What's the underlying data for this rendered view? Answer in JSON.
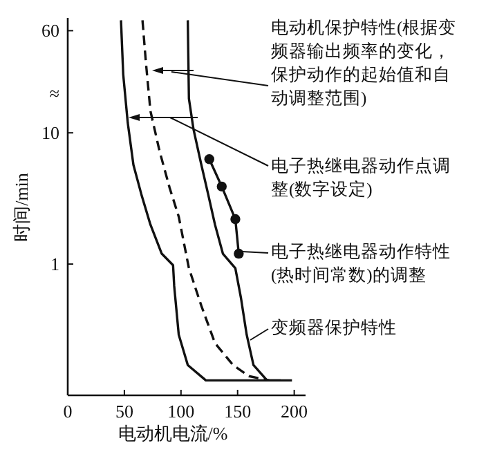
{
  "chart_data": {
    "type": "line",
    "xlabel": "电动机电流/%",
    "ylabel": "时间/min",
    "log": "y",
    "xlim": [
      0,
      210
    ],
    "ylim": [
      0.1,
      75
    ],
    "xticks": [
      0,
      50,
      100,
      150,
      200
    ],
    "yticks": [
      1,
      10,
      {
        "value": 20,
        "label": "≈"
      },
      60
    ],
    "series": [
      {
        "color": "#111111",
        "line_style": "solid",
        "marker": "none",
        "x": [
          47,
          49,
          53,
          58,
          65,
          73,
          83,
          93,
          94,
          98,
          106,
          122,
          152,
          198
        ],
        "values": [
          72,
          27.8,
          11.9,
          5.7,
          3.4,
          2.0,
          1.2,
          0.98,
          0.68,
          0.29,
          0.17,
          0.13,
          0.13,
          0.13
        ]
      },
      {
        "color": "#111111",
        "line_style": "dashed",
        "marker": "none",
        "x": [
          66,
          69,
          73,
          81,
          90,
          98,
          107,
          118,
          130,
          146,
          160,
          178
        ],
        "values": [
          72,
          34.5,
          14.7,
          7.3,
          3.8,
          2.3,
          0.93,
          0.48,
          0.25,
          0.17,
          0.14,
          0.13
        ]
      },
      {
        "color": "#111111",
        "line_style": "solid",
        "marker": "none",
        "x": [
          106,
          107,
          111,
          118,
          124,
          130,
          137,
          148,
          153,
          158,
          164,
          176,
          188
        ],
        "values": [
          72,
          18.2,
          10.7,
          5.7,
          3.4,
          2.0,
          1.2,
          0.93,
          0.55,
          0.29,
          0.17,
          0.13,
          0.13
        ]
      },
      {
        "color": "#111111",
        "line_style": "solid",
        "marker": "circle",
        "x": [
          125,
          136,
          148,
          151
        ],
        "values": [
          6.3,
          3.9,
          2.2,
          1.2
        ]
      }
    ],
    "annotations": [
      "电动机保护特性(根据变频器输出频率的变化，保护动作的起始值和自动调整范围)",
      "电子热继电器动作点调整(数字设定)",
      "电子热继电器动作特性(热时间常数)的调整",
      "变频器保护特性"
    ]
  }
}
